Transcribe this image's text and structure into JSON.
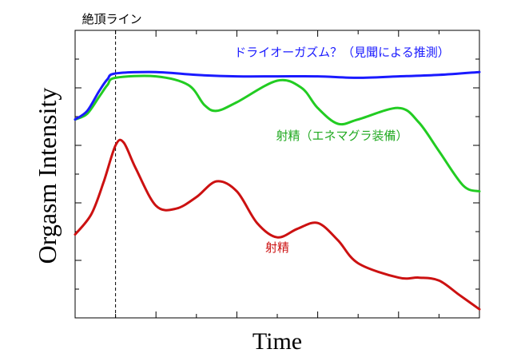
{
  "chart_data": {
    "type": "line",
    "xlabel": "Time",
    "ylabel": "Orgasm Intensity",
    "xlim": [
      0,
      10
    ],
    "ylim": [
      0,
      10
    ],
    "grid": false,
    "peak_marker": {
      "x": 1.0,
      "label": "絶頂ライン"
    },
    "series": [
      {
        "name": "ドライオーガズム？（見聞による推測）",
        "color": "#1a1aff",
        "x": [
          0,
          0.3,
          0.6,
          0.8,
          1.0,
          2.0,
          3.0,
          4.0,
          5.0,
          6.0,
          7.0,
          8.0,
          9.0,
          10.0
        ],
        "y": [
          6.9,
          7.2,
          7.9,
          8.3,
          8.5,
          8.55,
          8.45,
          8.4,
          8.4,
          8.4,
          8.35,
          8.4,
          8.45,
          8.55
        ]
      },
      {
        "name": "射精（エネマグラ装備）",
        "color": "#22cc22",
        "x": [
          0,
          0.3,
          0.6,
          0.8,
          1.0,
          2.0,
          2.8,
          3.2,
          3.5,
          4.0,
          5.0,
          5.6,
          6.0,
          6.5,
          7.0,
          8.0,
          8.5,
          9.0,
          9.6,
          10.0
        ],
        "y": [
          6.9,
          7.1,
          7.7,
          8.1,
          8.35,
          8.4,
          8.1,
          7.4,
          7.2,
          7.5,
          8.25,
          8.0,
          7.3,
          6.75,
          6.9,
          7.3,
          6.8,
          5.8,
          4.6,
          4.4
        ]
      },
      {
        "name": "射精",
        "color": "#cc1111",
        "x": [
          0,
          0.4,
          0.7,
          1.0,
          1.2,
          1.5,
          2.0,
          2.5,
          3.0,
          3.5,
          4.0,
          4.5,
          5.0,
          5.5,
          6.0,
          6.5,
          7.0,
          8.0,
          8.5,
          9.0,
          9.5,
          10.0
        ],
        "y": [
          2.9,
          3.6,
          4.7,
          6.0,
          6.1,
          5.2,
          3.9,
          3.8,
          4.2,
          4.75,
          4.4,
          3.3,
          2.8,
          3.1,
          3.3,
          2.7,
          1.9,
          1.4,
          1.4,
          1.3,
          0.8,
          0.3
        ]
      }
    ],
    "annotations": [
      {
        "text": "ドライオーガズム？（見聞による推測）",
        "x": 6.6,
        "y": 9.1,
        "color": "#1a1aff"
      },
      {
        "text": "射精（エネマグラ装備）",
        "x": 6.6,
        "y": 6.2,
        "color": "#22aa22"
      },
      {
        "text": "射精",
        "x": 5.0,
        "y": 2.3,
        "color": "#cc1111"
      }
    ],
    "x_tick_count": 10,
    "y_tick_count": 10
  }
}
